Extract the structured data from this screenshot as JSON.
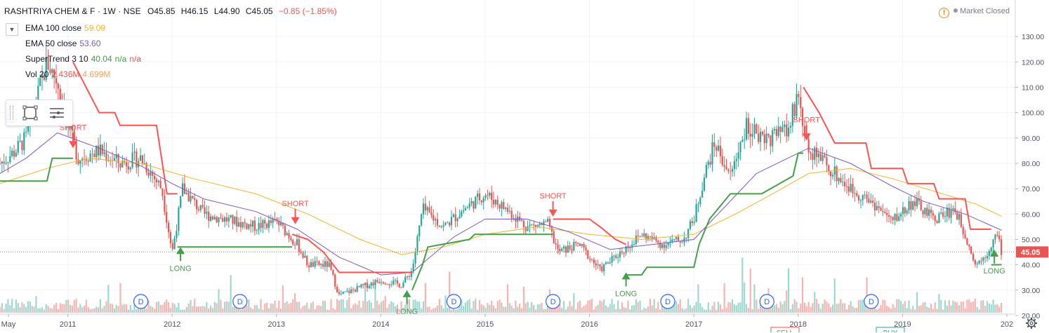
{
  "header": {
    "symbol": "RASHTRIYA CHEM & F · 1W · NSE",
    "open": "O45.85",
    "high": "H46.15",
    "low": "L44.90",
    "close": "C45.05",
    "change": "−0.85 (−1.85%)"
  },
  "studies": [
    {
      "label": "EMA 100 close",
      "values": [
        "59.09"
      ],
      "colors": [
        "#f0b429"
      ]
    },
    {
      "label": "EMA 50 close",
      "values": [
        "53.60"
      ],
      "colors": [
        "#7e57c2"
      ]
    },
    {
      "label": "SuperTrend 3 10",
      "values": [
        "40.04",
        "n/a",
        "n/a"
      ],
      "colors": [
        "#43a047",
        "#43a047",
        "#ef5350"
      ]
    },
    {
      "label": "Vol 20",
      "values": [
        "2.436M",
        "4.699M"
      ],
      "colors": [
        "#ef5350",
        "#f5a15e"
      ]
    }
  ],
  "market_status": {
    "warning_icon": "!",
    "label": "Market Closed"
  },
  "icons": {
    "collapse": "chevron-down-icon",
    "rectangle": "rectangle-tool-icon",
    "menu": "menu-lines-icon",
    "settings": "gear-icon"
  },
  "colors": {
    "up": "#26a69a",
    "down": "#ef5350",
    "ema100": "#f0b429",
    "ema50": "#7e57c2",
    "supertrend_up": "#43a047",
    "supertrend_down": "#ff5252",
    "vol_up": "#9fd8cf",
    "vol_down": "#f7b4b0",
    "last_price_bg": "#ef5350"
  },
  "chart_data": {
    "type": "candlestick",
    "timeframe": "1W",
    "ylim": [
      20,
      135
    ],
    "y_ticks": [
      "20.00",
      "30.00",
      "40.00",
      "50.00",
      "60.00",
      "70.00",
      "80.00",
      "90.00",
      "100.00",
      "110.00",
      "120.00",
      "130.00"
    ],
    "x_labels": [
      "May",
      "2011",
      "2012",
      "2013",
      "2014",
      "2015",
      "2016",
      "2017",
      "2018",
      "2019",
      "202"
    ],
    "last_price": "45.05",
    "price_path": [
      [
        "2010.35",
        80
      ],
      [
        "2010.5",
        85
      ],
      [
        "2010.6",
        90
      ],
      [
        "2010.7",
        105
      ],
      [
        "2010.8",
        120
      ],
      [
        "2010.9",
        112
      ],
      [
        "2011.0",
        95
      ],
      [
        "2011.1",
        82
      ],
      [
        "2011.3",
        85
      ],
      [
        "2011.5",
        80
      ],
      [
        "2011.7",
        82
      ],
      [
        "2011.9",
        70
      ],
      [
        "2012.0",
        45
      ],
      [
        "2012.1",
        70
      ],
      [
        "2012.3",
        60
      ],
      [
        "2012.5",
        58
      ],
      [
        "2012.8",
        55
      ],
      [
        "2013.0",
        57
      ],
      [
        "2013.2",
        48
      ],
      [
        "2013.3",
        40
      ],
      [
        "2013.5",
        40
      ],
      [
        "2013.6",
        28
      ],
      [
        "2013.8",
        31
      ],
      [
        "2014.0",
        34
      ],
      [
        "2014.2",
        32
      ],
      [
        "2014.3",
        38
      ],
      [
        "2014.4",
        62
      ],
      [
        "2014.6",
        55
      ],
      [
        "2014.8",
        62
      ],
      [
        "2015.0",
        68
      ],
      [
        "2015.2",
        62
      ],
      [
        "2015.4",
        55
      ],
      [
        "2015.6",
        56
      ],
      [
        "2015.7",
        45
      ],
      [
        "2015.9",
        48
      ],
      [
        "2016.1",
        38
      ],
      [
        "2016.3",
        45
      ],
      [
        "2016.5",
        52
      ],
      [
        "2016.7",
        48
      ],
      [
        "2016.9",
        50
      ],
      [
        "2017.0",
        58
      ],
      [
        "2017.1",
        75
      ],
      [
        "2017.2",
        88
      ],
      [
        "2017.35",
        75
      ],
      [
        "2017.5",
        95
      ],
      [
        "2017.7",
        90
      ],
      [
        "2017.9",
        92
      ],
      [
        "2018.0",
        108
      ],
      [
        "2018.1",
        85
      ],
      [
        "2018.3",
        78
      ],
      [
        "2018.5",
        70
      ],
      [
        "2018.7",
        65
      ],
      [
        "2018.9",
        57
      ],
      [
        "2019.1",
        65
      ],
      [
        "2019.3",
        58
      ],
      [
        "2019.5",
        62
      ],
      [
        "2019.6",
        52
      ],
      [
        "2019.7",
        40
      ],
      [
        "2019.8",
        44
      ],
      [
        "2019.9",
        52
      ],
      [
        "2019.95",
        45.05
      ]
    ],
    "ema50": [
      [
        "2010.35",
        76
      ],
      [
        "2010.6",
        82
      ],
      [
        "2010.9",
        92
      ],
      [
        "2011.3",
        86
      ],
      [
        "2011.7",
        79
      ],
      [
        "2012.0",
        72
      ],
      [
        "2012.3",
        66
      ],
      [
        "2012.8",
        61
      ],
      [
        "2013.2",
        54
      ],
      [
        "2013.6",
        43
      ],
      [
        "2014.0",
        36
      ],
      [
        "2014.3",
        37
      ],
      [
        "2014.7",
        51
      ],
      [
        "2015.0",
        58
      ],
      [
        "2015.4",
        58
      ],
      [
        "2015.8",
        53
      ],
      [
        "2016.2",
        46
      ],
      [
        "2016.6",
        48
      ],
      [
        "2017.0",
        50
      ],
      [
        "2017.3",
        63
      ],
      [
        "2017.6",
        76
      ],
      [
        "2017.9",
        82
      ],
      [
        "2018.1",
        86
      ],
      [
        "2018.5",
        80
      ],
      [
        "2018.9",
        71
      ],
      [
        "2019.2",
        65
      ],
      [
        "2019.6",
        60
      ],
      [
        "2019.95",
        53.6
      ]
    ],
    "ema100": [
      [
        "2010.35",
        72
      ],
      [
        "2010.8",
        78
      ],
      [
        "2011.2",
        82
      ],
      [
        "2011.7",
        80
      ],
      [
        "2012.2",
        74
      ],
      [
        "2012.8",
        68
      ],
      [
        "2013.3",
        60
      ],
      [
        "2013.8",
        50
      ],
      [
        "2014.2",
        44
      ],
      [
        "2014.6",
        47
      ],
      [
        "2015.0",
        52
      ],
      [
        "2015.5",
        55
      ],
      [
        "2016.0",
        52
      ],
      [
        "2016.5",
        50
      ],
      [
        "2017.0",
        52
      ],
      [
        "2017.4",
        60
      ],
      [
        "2017.8",
        69
      ],
      [
        "2018.1",
        76
      ],
      [
        "2018.5",
        78
      ],
      [
        "2018.9",
        74
      ],
      [
        "2019.3",
        69
      ],
      [
        "2019.7",
        64
      ],
      [
        "2019.95",
        59.09
      ]
    ],
    "supertrend": [
      {
        "trend": "up",
        "points": [
          [
            "2010.35",
            73
          ],
          [
            "2010.8",
            73
          ],
          [
            "2010.85",
            82
          ],
          [
            "2011.05",
            82
          ]
        ]
      },
      {
        "trend": "down",
        "points": [
          [
            "2011.05",
            120
          ],
          [
            "2011.2",
            108
          ],
          [
            "2011.3",
            100
          ],
          [
            "2011.45",
            100
          ],
          [
            "2011.5",
            95
          ],
          [
            "2011.85",
            95
          ],
          [
            "2011.95",
            68
          ],
          [
            "2012.05",
            68
          ]
        ]
      },
      {
        "trend": "up",
        "points": [
          [
            "2012.05",
            47
          ],
          [
            "2013.15",
            47
          ]
        ]
      },
      {
        "trend": "down",
        "points": [
          [
            "2013.15",
            52
          ],
          [
            "2013.3",
            50
          ],
          [
            "2013.45",
            45
          ],
          [
            "2013.6",
            37
          ],
          [
            "2014.3",
            37
          ]
        ]
      },
      {
        "trend": "up",
        "points": [
          [
            "2014.3",
            30
          ],
          [
            "2014.4",
            40
          ],
          [
            "2014.45",
            47
          ],
          [
            "2014.85",
            50
          ],
          [
            "2014.9",
            52
          ],
          [
            "2015.6",
            52
          ],
          [
            "2015.65",
            52
          ]
        ]
      },
      {
        "trend": "down",
        "points": [
          [
            "2015.65",
            58
          ],
          [
            "2016.0",
            58
          ],
          [
            "2016.1",
            55
          ],
          [
            "2016.25",
            50
          ],
          [
            "2016.35",
            48
          ]
        ]
      },
      {
        "trend": "up",
        "points": [
          [
            "2016.35",
            36
          ],
          [
            "2016.5",
            36
          ],
          [
            "2016.55",
            39
          ],
          [
            "2017.0",
            39
          ],
          [
            "2017.05",
            48
          ],
          [
            "2017.15",
            58
          ],
          [
            "2017.35",
            68
          ],
          [
            "2017.65",
            68
          ],
          [
            "2017.95",
            75
          ],
          [
            "2018.0",
            84
          ],
          [
            "2018.05",
            84
          ]
        ]
      },
      {
        "trend": "down",
        "points": [
          [
            "2018.05",
            110
          ],
          [
            "2018.2",
            100
          ],
          [
            "2018.35",
            88
          ],
          [
            "2018.65",
            88
          ],
          [
            "2018.7",
            78
          ],
          [
            "2019.0",
            78
          ],
          [
            "2019.05",
            72
          ],
          [
            "2019.3",
            72
          ],
          [
            "2019.35",
            66
          ],
          [
            "2019.6",
            66
          ],
          [
            "2019.65",
            54
          ],
          [
            "2019.85",
            54
          ]
        ]
      },
      {
        "trend": "up",
        "points": [
          [
            "2019.85",
            40
          ],
          [
            "2019.95",
            40.04
          ]
        ]
      }
    ],
    "signals": [
      {
        "type": "short",
        "label": "SHORT",
        "x": "2011.05",
        "price": 86
      },
      {
        "type": "long",
        "label": "LONG",
        "x": "2012.08",
        "price": 47
      },
      {
        "type": "short",
        "label": "SHORT",
        "x": "2013.18",
        "price": 56
      },
      {
        "type": "long",
        "label": "LONG",
        "x": "2014.25",
        "price": 30
      },
      {
        "type": "short",
        "label": "SHORT",
        "x": "2015.65",
        "price": 59
      },
      {
        "type": "long",
        "label": "LONG",
        "x": "2016.35",
        "price": 37
      },
      {
        "type": "short",
        "label": "SHORT",
        "x": "2018.08",
        "price": 89
      },
      {
        "type": "long",
        "label": "LONG",
        "x": "2019.88",
        "price": 46
      }
    ],
    "dividend_markers": [
      {
        "label": "D",
        "x": "2011.7"
      },
      {
        "label": "D",
        "x": "2012.65"
      },
      {
        "label": "D",
        "x": "2014.7"
      },
      {
        "label": "D",
        "x": "2015.65"
      },
      {
        "label": "D",
        "x": "2016.75"
      },
      {
        "label": "D",
        "x": "2017.7"
      },
      {
        "label": "D",
        "x": "2018.7"
      }
    ],
    "bottom_labels": [
      "SELL",
      "BUY"
    ]
  }
}
